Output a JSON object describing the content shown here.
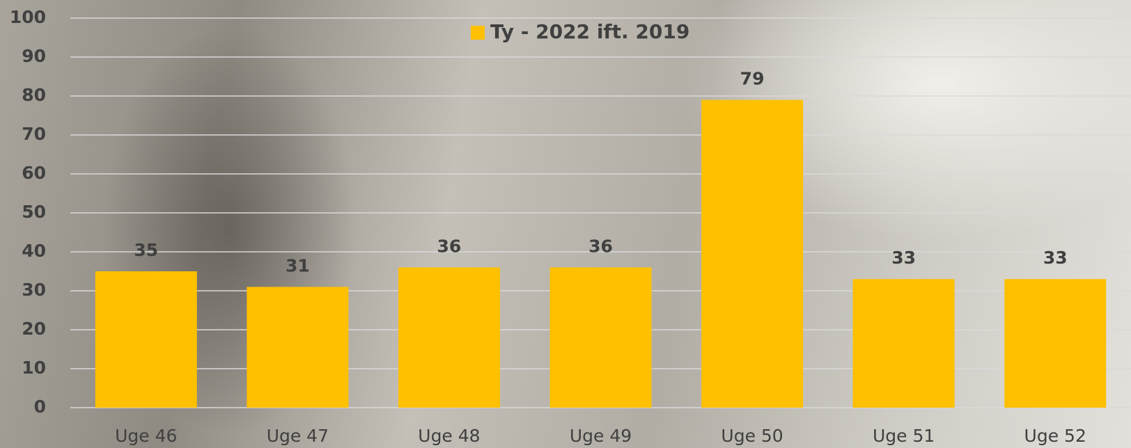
{
  "chart_data": {
    "type": "bar",
    "categories": [
      "Uge 46",
      "Uge 47",
      "Uge 48",
      "Uge 49",
      "Uge 50",
      "Uge 51",
      "Uge 52"
    ],
    "series": [
      {
        "name": "Ty - 2022 ift. 2019",
        "color": "#FFC000",
        "values": [
          35,
          31,
          36,
          36,
          79,
          33,
          33
        ]
      }
    ],
    "ylim": [
      0,
      100
    ],
    "yticks": [
      0,
      10,
      20,
      30,
      40,
      50,
      60,
      70,
      80,
      90,
      100
    ],
    "grid": true,
    "legend": "top",
    "data_labels": true
  }
}
